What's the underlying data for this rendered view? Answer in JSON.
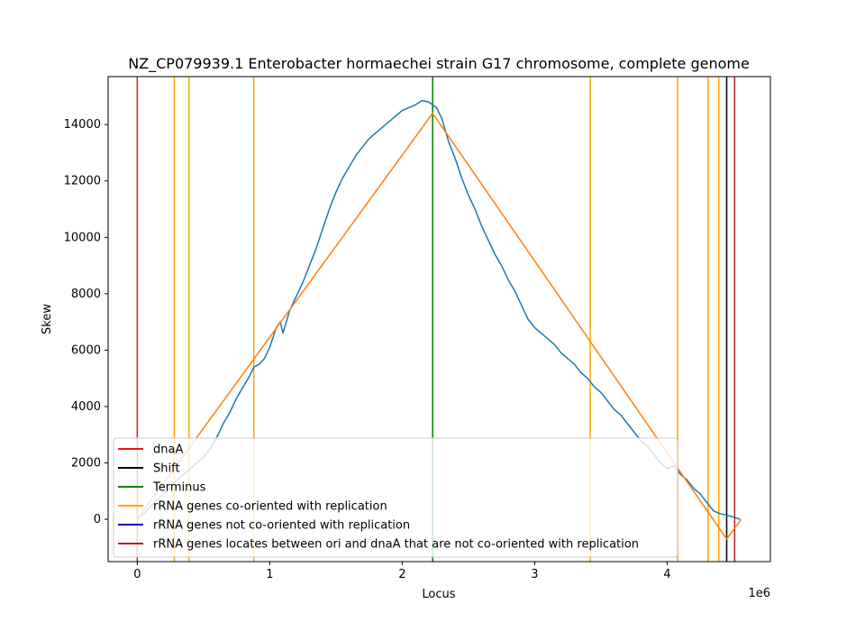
{
  "chart_data": {
    "type": "line",
    "title": "NZ_CP079939.1 Enterobacter hormaechei strain G17 chromosome, complete genome",
    "xlabel": "Locus",
    "ylabel": "Skew",
    "x_offset_text": "1e6",
    "xlim": [
      -220000,
      4780000
    ],
    "ylim": [
      -1500,
      15700
    ],
    "x_ticks": [
      {
        "value": 0,
        "label": "0"
      },
      {
        "value": 1000000,
        "label": "1"
      },
      {
        "value": 2000000,
        "label": "2"
      },
      {
        "value": 3000000,
        "label": "3"
      },
      {
        "value": 4000000,
        "label": "4"
      }
    ],
    "y_ticks": [
      {
        "value": 0,
        "label": "0"
      },
      {
        "value": 2000,
        "label": "2000"
      },
      {
        "value": 4000,
        "label": "4000"
      },
      {
        "value": 6000,
        "label": "6000"
      },
      {
        "value": 8000,
        "label": "8000"
      },
      {
        "value": 10000,
        "label": "10000"
      },
      {
        "value": 12000,
        "label": "12000"
      },
      {
        "value": 14000,
        "label": "14000"
      }
    ],
    "grid": false,
    "legend_position": "lower-left",
    "skew_series": {
      "color": "#1f77b4",
      "x": [
        0,
        50000,
        100000,
        150000,
        200000,
        250000,
        300000,
        350000,
        400000,
        450000,
        500000,
        550000,
        600000,
        650000,
        700000,
        750000,
        800000,
        850000,
        880000,
        920000,
        960000,
        1000000,
        1050000,
        1080000,
        1100000,
        1150000,
        1200000,
        1250000,
        1300000,
        1350000,
        1400000,
        1450000,
        1500000,
        1550000,
        1600000,
        1650000,
        1700000,
        1750000,
        1800000,
        1850000,
        1900000,
        1950000,
        2000000,
        2050000,
        2100000,
        2150000,
        2200000,
        2230000,
        2260000,
        2300000,
        2350000,
        2400000,
        2450000,
        2500000,
        2550000,
        2600000,
        2650000,
        2700000,
        2750000,
        2800000,
        2850000,
        2900000,
        2950000,
        3000000,
        3050000,
        3100000,
        3150000,
        3200000,
        3250000,
        3300000,
        3350000,
        3400000,
        3450000,
        3500000,
        3550000,
        3600000,
        3650000,
        3700000,
        3750000,
        3800000,
        3850000,
        3900000,
        3950000,
        4000000,
        4050000,
        4100000,
        4150000,
        4200000,
        4250000,
        4300000,
        4350000,
        4400000,
        4450000,
        4500000,
        4550000
      ],
      "y": [
        0,
        200,
        450,
        700,
        900,
        1150,
        1400,
        1600,
        1800,
        2000,
        2200,
        2500,
        2900,
        3400,
        3800,
        4300,
        4700,
        5100,
        5400,
        5500,
        5700,
        6100,
        6800,
        7000,
        6600,
        7400,
        7900,
        8400,
        9000,
        9600,
        10300,
        11000,
        11600,
        12100,
        12500,
        12900,
        13200,
        13500,
        13700,
        13900,
        14100,
        14300,
        14500,
        14600,
        14700,
        14850,
        14800,
        14700,
        14600,
        14200,
        13400,
        12800,
        12100,
        11500,
        11000,
        10400,
        9900,
        9400,
        9000,
        8500,
        8100,
        7600,
        7100,
        6800,
        6600,
        6400,
        6200,
        5900,
        5700,
        5500,
        5200,
        5000,
        4700,
        4500,
        4200,
        3900,
        3700,
        3400,
        3100,
        2800,
        2600,
        2300,
        2000,
        1800,
        1900,
        1600,
        1400,
        1100,
        900,
        600,
        300,
        200,
        150,
        80,
        0
      ]
    },
    "fit_series": {
      "color": "#ff7f0e",
      "x": [
        0,
        2230000,
        4450000,
        4560000
      ],
      "y": [
        0,
        14400,
        -700,
        0
      ]
    },
    "vertical_lines": [
      {
        "series": "dnaA",
        "x": 0,
        "color": "#e41a1c"
      },
      {
        "series": "rrna_co",
        "x": 280000,
        "color": "#ffa500"
      },
      {
        "series": "rrna_co",
        "x": 390000,
        "color": "#ffa500"
      },
      {
        "series": "rrna_co",
        "x": 880000,
        "color": "#ffa500"
      },
      {
        "series": "terminus",
        "x": 2230000,
        "color": "#008000"
      },
      {
        "series": "rrna_co",
        "x": 3420000,
        "color": "#ffa500"
      },
      {
        "series": "rrna_co",
        "x": 4080000,
        "color": "#ffa500"
      },
      {
        "series": "rrna_co",
        "x": 4310000,
        "color": "#ffa500"
      },
      {
        "series": "rrna_co",
        "x": 4390000,
        "color": "#ffa500"
      },
      {
        "series": "shift",
        "x": 4450000,
        "color": "#000000"
      },
      {
        "series": "rrna_between",
        "x": 4510000,
        "color": "#b22222"
      }
    ],
    "legend": [
      {
        "id": "dnaA",
        "label": "dnaA",
        "color": "#e41a1c"
      },
      {
        "id": "shift",
        "label": "Shift",
        "color": "#000000"
      },
      {
        "id": "terminus",
        "label": "Terminus",
        "color": "#008000"
      },
      {
        "id": "rrna_co",
        "label": "rRNA genes co-oriented with replication",
        "color": "#ffa500"
      },
      {
        "id": "rrna_not_co",
        "label": "rRNA genes not co-oriented with replication",
        "color": "#0000cd"
      },
      {
        "id": "rrna_between",
        "label": "rRNA genes locates between ori and dnaA that are not co-oriented with replication",
        "color": "#b22222"
      }
    ]
  }
}
